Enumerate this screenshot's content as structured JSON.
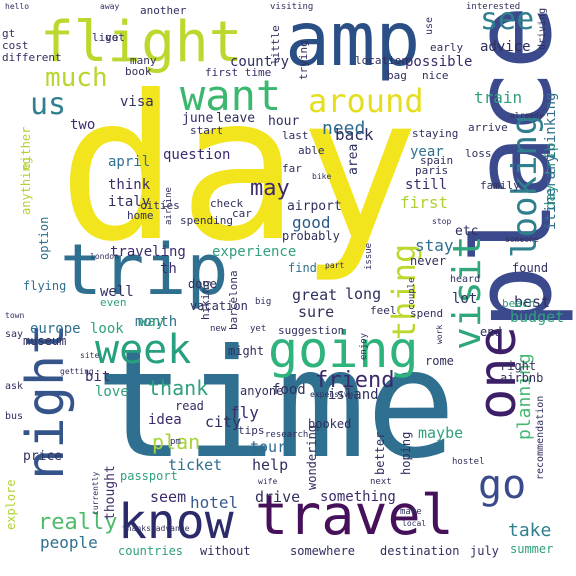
{
  "words": [
    {
      "id": "day",
      "text": "day",
      "color": "#f2e51e"
    },
    {
      "id": "time",
      "text": "time",
      "color": "#2f6f8f"
    },
    {
      "id": "place",
      "text": "place",
      "color": "#3b4a8c"
    },
    {
      "id": "trip",
      "text": "trip",
      "color": "#2f6f8f"
    },
    {
      "id": "amp",
      "text": "amp",
      "color": "#2a4e86"
    },
    {
      "id": "flight",
      "text": "flight",
      "color": "#bcd82f"
    },
    {
      "id": "travel",
      "text": "travel",
      "color": "#46105b"
    },
    {
      "id": "know",
      "text": "know",
      "color": "#2b2b6b"
    },
    {
      "id": "going",
      "text": "going",
      "color": "#2fb37c"
    },
    {
      "id": "night",
      "text": "night",
      "color": "#34548a"
    },
    {
      "id": "one",
      "text": "one",
      "color": "#3d1f68"
    },
    {
      "id": "week",
      "text": "week",
      "color": "#26a07f"
    },
    {
      "id": "want",
      "text": "want",
      "color": "#3cb76f"
    },
    {
      "id": "visit",
      "text": "visit",
      "color": "#2fa77b"
    },
    {
      "id": "looking",
      "text": "looking",
      "color": "#2f7f8f"
    },
    {
      "id": "around",
      "text": "around",
      "color": "#e5de1f"
    },
    {
      "id": "thing",
      "text": "thing",
      "color": "#bcd82f"
    },
    {
      "id": "go",
      "text": "go",
      "color": "#3b4a8c"
    },
    {
      "id": "much",
      "text": "much",
      "color": "#b7d630"
    },
    {
      "id": "us",
      "text": "us",
      "color": "#2f7f8f"
    },
    {
      "id": "see",
      "text": "see",
      "color": "#2f7f8f"
    },
    {
      "id": "need",
      "text": "need",
      "color": "#2f6a8f"
    },
    {
      "id": "friend",
      "text": "friend",
      "color": "#3b2a6a"
    },
    {
      "id": "may",
      "text": "may",
      "color": "#3d2b6b"
    },
    {
      "id": "really",
      "text": "really",
      "color": "#4cbc6c"
    },
    {
      "id": "plan",
      "text": "plan",
      "color": "#a9d33a"
    },
    {
      "id": "thank",
      "text": "thank",
      "color": "#30a07e"
    },
    {
      "id": "take",
      "text": "take",
      "color": "#2f7f8f"
    },
    {
      "id": "planning",
      "text": "planning",
      "color": "#47b873"
    },
    {
      "id": "people",
      "text": "people",
      "color": "#2f6f8f"
    },
    {
      "id": "hotel",
      "text": "hotel",
      "color": "#3a5a8f"
    },
    {
      "id": "seem",
      "text": "seem",
      "color": "#3d2b6b"
    },
    {
      "id": "good",
      "text": "good",
      "color": "#2b5a88"
    },
    {
      "id": "back",
      "text": "back",
      "color": "#30305f"
    },
    {
      "id": "first",
      "text": "first",
      "color": "#b0d136"
    },
    {
      "id": "tour",
      "text": "tour",
      "color": "#2f6a8f"
    },
    {
      "id": "city",
      "text": "city",
      "color": "#30305f"
    },
    {
      "id": "help",
      "text": "help",
      "color": "#30305f"
    },
    {
      "id": "drive",
      "text": "drive",
      "color": "#30305f"
    },
    {
      "id": "maybe",
      "text": "maybe",
      "color": "#30a07e"
    },
    {
      "id": "ticket",
      "text": "ticket",
      "color": "#2f6f8f"
    },
    {
      "id": "fly",
      "text": "fly",
      "color": "#3d2b6b"
    },
    {
      "id": "idea",
      "text": "idea",
      "color": "#3d2b6b"
    },
    {
      "id": "something",
      "text": "something",
      "color": "#3d2b6b"
    },
    {
      "id": "love",
      "text": "love",
      "color": "#30a07e"
    },
    {
      "id": "bit",
      "text": "bit",
      "color": "#3d2b6b"
    },
    {
      "id": "month",
      "text": "month",
      "color": "#2f6f8f"
    },
    {
      "id": "well",
      "text": "well",
      "color": "#30305f"
    },
    {
      "id": "th",
      "text": "th",
      "color": "#3d2b6b"
    },
    {
      "id": "way",
      "text": "way",
      "color": "#30a07e"
    },
    {
      "id": "look",
      "text": "look",
      "color": "#30a07e"
    },
    {
      "id": "europe",
      "text": "europe",
      "color": "#2f6f8f"
    },
    {
      "id": "traveling",
      "text": "traveling",
      "color": "#3d2b6b"
    },
    {
      "id": "experience",
      "text": "experience",
      "color": "#30a07e"
    },
    {
      "id": "stay",
      "text": "stay",
      "color": "#2f6f8f"
    },
    {
      "id": "long",
      "text": "long",
      "color": "#30305f"
    },
    {
      "id": "great",
      "text": "great",
      "color": "#30305f"
    },
    {
      "id": "sure",
      "text": "sure",
      "color": "#30305f"
    },
    {
      "id": "year",
      "text": "year",
      "color": "#2f6f8f"
    },
    {
      "id": "still",
      "text": "still",
      "color": "#3d2b6b"
    },
    {
      "id": "think",
      "text": "think",
      "color": "#3d2b6b"
    },
    {
      "id": "question",
      "text": "question",
      "color": "#3d2b6b"
    },
    {
      "id": "two",
      "text": "two",
      "color": "#3d2b6b"
    },
    {
      "id": "visa",
      "text": "visa",
      "color": "#30305f"
    },
    {
      "id": "country",
      "text": "country",
      "color": "#30305f"
    },
    {
      "id": "advice",
      "text": "advice",
      "color": "#30305f"
    },
    {
      "id": "possible",
      "text": "possible",
      "color": "#3d2b6b"
    },
    {
      "id": "train",
      "text": "train",
      "color": "#30a07e"
    },
    {
      "id": "best",
      "text": "best",
      "color": "#30305f"
    },
    {
      "id": "budget",
      "text": "budget",
      "color": "#30a07e"
    },
    {
      "id": "lot",
      "text": "lot",
      "color": "#30305f"
    },
    {
      "id": "island",
      "text": "island",
      "color": "#30305f"
    },
    {
      "id": "food",
      "text": "food",
      "color": "#30305f"
    },
    {
      "id": "airport",
      "text": "airport",
      "color": "#30305f"
    },
    {
      "id": "may_april",
      "text": "april",
      "color": "#2f6f8f"
    },
    {
      "id": "italy",
      "text": "italy",
      "color": "#30305f"
    },
    {
      "id": "june",
      "text": "june",
      "color": "#3d2b6b"
    },
    {
      "id": "hour",
      "text": "hour",
      "color": "#30305f"
    },
    {
      "id": "leave",
      "text": "leave",
      "color": "#30305f"
    },
    {
      "id": "first_time",
      "text": "first time",
      "color": "#3d2b6b"
    },
    {
      "id": "passport",
      "text": "passport",
      "color": "#30a07e"
    },
    {
      "id": "thought",
      "text": "thought",
      "color": "#3d2b6b"
    },
    {
      "id": "price",
      "text": "price",
      "color": "#30305f"
    },
    {
      "id": "explore",
      "text": "explore",
      "color": "#b0d136"
    },
    {
      "id": "countries",
      "text": "countries",
      "color": "#30a07e"
    },
    {
      "id": "without",
      "text": "without",
      "color": "#30305f"
    },
    {
      "id": "somewhere",
      "text": "somewhere",
      "color": "#30305f"
    },
    {
      "id": "destination",
      "text": "destination",
      "color": "#30305f"
    },
    {
      "id": "july",
      "text": "july",
      "color": "#30305f"
    },
    {
      "id": "summer",
      "text": "summer",
      "color": "#30a07e"
    },
    {
      "id": "day_trip",
      "text": "day trip",
      "color": "#30a07e"
    },
    {
      "id": "itinerary",
      "text": "itinerary",
      "color": "#2f6f8f"
    },
    {
      "id": "thinking",
      "text": "thinking",
      "color": "#2f6f8f"
    },
    {
      "id": "flying",
      "text": "flying",
      "color": "#2f6f8f"
    },
    {
      "id": "anything",
      "text": "anything",
      "color": "#b0d136"
    },
    {
      "id": "option",
      "text": "option",
      "color": "#2f6f8f"
    },
    {
      "id": "either",
      "text": "either",
      "color": "#b0d136"
    },
    {
      "id": "museum",
      "text": "museum",
      "color": "#30305f"
    },
    {
      "id": "etc",
      "text": "etc",
      "color": "#30305f"
    },
    {
      "id": "area",
      "text": "area",
      "color": "#30305f"
    },
    {
      "id": "probably",
      "text": "probably",
      "color": "#30305f"
    },
    {
      "id": "find",
      "text": "find",
      "color": "#2f6f8f"
    },
    {
      "id": "never",
      "text": "never",
      "color": "#30305f"
    },
    {
      "id": "done",
      "text": "done",
      "color": "#30305f"
    },
    {
      "id": "vacation",
      "text": "vacation",
      "color": "#30305f"
    },
    {
      "id": "anyone",
      "text": "anyone",
      "color": "#30305f"
    },
    {
      "id": "read",
      "text": "read",
      "color": "#30305f"
    },
    {
      "id": "booked",
      "text": "booked",
      "color": "#30305f"
    },
    {
      "id": "better",
      "text": "better",
      "color": "#30305f"
    },
    {
      "id": "hoping",
      "text": "hoping",
      "color": "#30305f"
    },
    {
      "id": "wondering",
      "text": "wondering",
      "color": "#30305f"
    },
    {
      "id": "might",
      "text": "might",
      "color": "#30305f"
    },
    {
      "id": "right",
      "text": "right",
      "color": "#30305f"
    },
    {
      "id": "airbnb",
      "text": "airbnb",
      "color": "#30305f"
    },
    {
      "id": "end",
      "text": "end",
      "color": "#30305f"
    },
    {
      "id": "rome",
      "text": "rome",
      "color": "#30305f"
    },
    {
      "id": "beach",
      "text": "beach",
      "color": "#30a07e"
    },
    {
      "id": "found",
      "text": "found",
      "color": "#30305f"
    },
    {
      "id": "spend",
      "text": "spend",
      "color": "#30305f"
    },
    {
      "id": "suggestion",
      "text": "suggestion",
      "color": "#30305f"
    },
    {
      "id": "feel",
      "text": "feel",
      "color": "#30305f"
    },
    {
      "id": "hiking",
      "text": "hiking",
      "color": "#30305f"
    },
    {
      "id": "barcelona",
      "text": "barcelona",
      "color": "#30305f"
    },
    {
      "id": "cities",
      "text": "cities",
      "color": "#30305f"
    },
    {
      "id": "home",
      "text": "home",
      "color": "#30305f"
    },
    {
      "id": "check",
      "text": "check",
      "color": "#30305f"
    },
    {
      "id": "car",
      "text": "car",
      "color": "#30305f"
    },
    {
      "id": "spending",
      "text": "spending",
      "color": "#30305f"
    },
    {
      "id": "start",
      "text": "start",
      "color": "#30305f"
    },
    {
      "id": "last",
      "text": "last",
      "color": "#30305f"
    },
    {
      "id": "able",
      "text": "able",
      "color": "#30305f"
    },
    {
      "id": "far",
      "text": "far",
      "color": "#30305f"
    },
    {
      "id": "paris",
      "text": "paris",
      "color": "#30305f"
    },
    {
      "id": "family",
      "text": "family",
      "color": "#30305f"
    },
    {
      "id": "staying",
      "text": "staying",
      "color": "#30305f"
    },
    {
      "id": "arrive",
      "text": "arrive",
      "color": "#30305f"
    },
    {
      "id": "loss",
      "text": "loss",
      "color": "#30305f"
    },
    {
      "id": "spain",
      "text": "spain",
      "color": "#30305f"
    },
    {
      "id": "bag",
      "text": "bag",
      "color": "#30305f"
    },
    {
      "id": "nice",
      "text": "nice",
      "color": "#30305f"
    },
    {
      "id": "location",
      "text": "location",
      "color": "#30305f"
    },
    {
      "id": "early",
      "text": "early",
      "color": "#30305f"
    },
    {
      "id": "trying",
      "text": "trying",
      "color": "#30305f"
    },
    {
      "id": "many",
      "text": "many",
      "color": "#30305f"
    },
    {
      "id": "book",
      "text": "book",
      "color": "#30305f"
    },
    {
      "id": "little",
      "text": "little",
      "color": "#30305f"
    },
    {
      "id": "live",
      "text": "live",
      "color": "#30305f"
    },
    {
      "id": "got",
      "text": "got",
      "color": "#30305f"
    },
    {
      "id": "gt",
      "text": "gt",
      "color": "#30305f"
    },
    {
      "id": "cost",
      "text": "cost",
      "color": "#30305f"
    },
    {
      "id": "different",
      "text": "different",
      "color": "#30305f"
    },
    {
      "id": "another",
      "text": "another",
      "color": "#30305f"
    },
    {
      "id": "interested",
      "text": "interested",
      "color": "#30305f"
    },
    {
      "id": "driving",
      "text": "driving",
      "color": "#30305f"
    },
    {
      "id": "use",
      "text": "use",
      "color": "#30305f"
    },
    {
      "id": "visiting",
      "text": "visiting",
      "color": "#30305f"
    },
    {
      "id": "hello",
      "text": "hello",
      "color": "#30305f"
    },
    {
      "id": "away",
      "text": "away",
      "color": "#30305f"
    },
    {
      "id": "say",
      "text": "say",
      "color": "#30305f"
    },
    {
      "id": "ask",
      "text": "ask",
      "color": "#30305f"
    },
    {
      "id": "bus",
      "text": "bus",
      "color": "#30305f"
    },
    {
      "id": "recommendation",
      "text": "recommendation",
      "color": "#30305f"
    },
    {
      "id": "research",
      "text": "research",
      "color": "#30305f"
    },
    {
      "id": "tips",
      "text": "tips",
      "color": "#30305f"
    },
    {
      "id": "next",
      "text": "next",
      "color": "#30305f"
    },
    {
      "id": "make",
      "text": "make",
      "color": "#30305f"
    },
    {
      "id": "hostel",
      "text": "hostel",
      "color": "#30305f"
    },
    {
      "id": "couple",
      "text": "couple",
      "color": "#30305f"
    },
    {
      "id": "heard",
      "text": "heard",
      "color": "#30305f"
    },
    {
      "id": "issue",
      "text": "issue",
      "color": "#30305f"
    },
    {
      "id": "enjoy",
      "text": "enjoy",
      "color": "#30305f"
    },
    {
      "id": "new",
      "text": "new",
      "color": "#30305f"
    },
    {
      "id": "yet",
      "text": "yet",
      "color": "#30305f"
    },
    {
      "id": "big",
      "text": "big",
      "color": "#30305f"
    },
    {
      "id": "london",
      "text": "london",
      "color": "#30305f"
    },
    {
      "id": "town",
      "text": "town",
      "color": "#30305f"
    },
    {
      "id": "already",
      "text": "already",
      "color": "#30305f"
    },
    {
      "id": "stop",
      "text": "stop",
      "color": "#30305f"
    },
    {
      "id": "someone",
      "text": "someone",
      "color": "#30305f"
    },
    {
      "id": "part",
      "text": "part",
      "color": "#30305f"
    },
    {
      "id": "even",
      "text": "even",
      "color": "#30a07e"
    },
    {
      "id": "wife",
      "text": "wife",
      "color": "#30305f"
    },
    {
      "id": "currently",
      "text": "currently",
      "color": "#30305f"
    },
    {
      "id": "thanks_advance",
      "text": "thanks advance",
      "color": "#30305f"
    },
    {
      "id": "pm",
      "text": "pm",
      "color": "#30305f"
    },
    {
      "id": "local",
      "text": "local",
      "color": "#30305f"
    },
    {
      "id": "bike",
      "text": "bike",
      "color": "#30305f"
    },
    {
      "id": "airline",
      "text": "airline",
      "color": "#30305f"
    },
    {
      "id": "getting",
      "text": "getting",
      "color": "#30305f"
    },
    {
      "id": "expensive",
      "text": "expensive",
      "color": "#30305f"
    },
    {
      "id": "site",
      "text": "site",
      "color": "#30305f"
    },
    {
      "id": "work",
      "text": "work",
      "color": "#30305f"
    }
  ]
}
